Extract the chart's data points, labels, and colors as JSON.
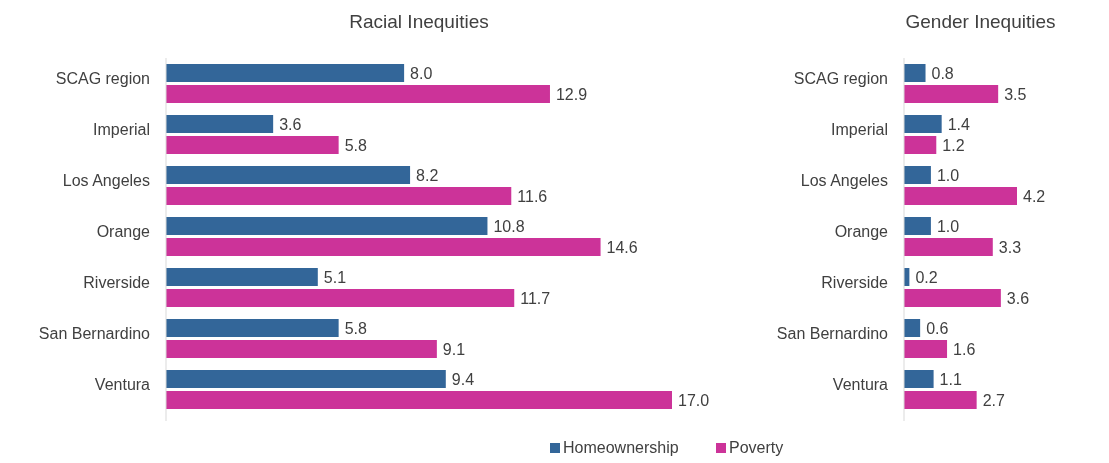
{
  "chart_data": [
    {
      "type": "bar",
      "orientation": "horizontal",
      "title": "Racial Inequities",
      "categories": [
        "SCAG region",
        "Imperial",
        "Los Angeles",
        "Orange",
        "Riverside",
        "San Bernardino",
        "Ventura"
      ],
      "series": [
        {
          "name": "Homeownership",
          "color": "#336699",
          "values": [
            8.0,
            3.6,
            8.2,
            10.8,
            5.1,
            5.8,
            9.4
          ],
          "value_labels": [
            "8.0",
            "3.6",
            "8.2",
            "10.8",
            "5.1",
            "5.8",
            "9.4"
          ]
        },
        {
          "name": "Poverty",
          "color": "#cc3399",
          "values": [
            12.9,
            5.8,
            11.6,
            14.6,
            11.7,
            9.1,
            17.0
          ],
          "value_labels": [
            "12.9",
            "5.8",
            "11.6",
            "14.6",
            "11.7",
            "9.1",
            "17.0"
          ]
        }
      ],
      "legend": "bottom"
    },
    {
      "type": "bar",
      "orientation": "horizontal",
      "title": "Gender Inequities",
      "categories": [
        "SCAG region",
        "Imperial",
        "Los Angeles",
        "Orange",
        "Riverside",
        "San Bernardino",
        "Ventura"
      ],
      "series": [
        {
          "color": "#336699",
          "values": [
            0.8,
            1.4,
            1.0,
            1.0,
            0.2,
            0.6,
            1.1
          ],
          "value_labels": [
            "0.8",
            "1.4",
            "1.0",
            "1.0",
            "0.2",
            "0.6",
            "1.1"
          ]
        },
        {
          "color": "#cc3399",
          "values": [
            3.5,
            1.2,
            4.2,
            3.3,
            3.6,
            1.6,
            2.7
          ],
          "value_labels": [
            "3.5",
            "1.2",
            "4.2",
            "3.3",
            "3.6",
            "1.6",
            "2.7"
          ]
        }
      ]
    }
  ]
}
